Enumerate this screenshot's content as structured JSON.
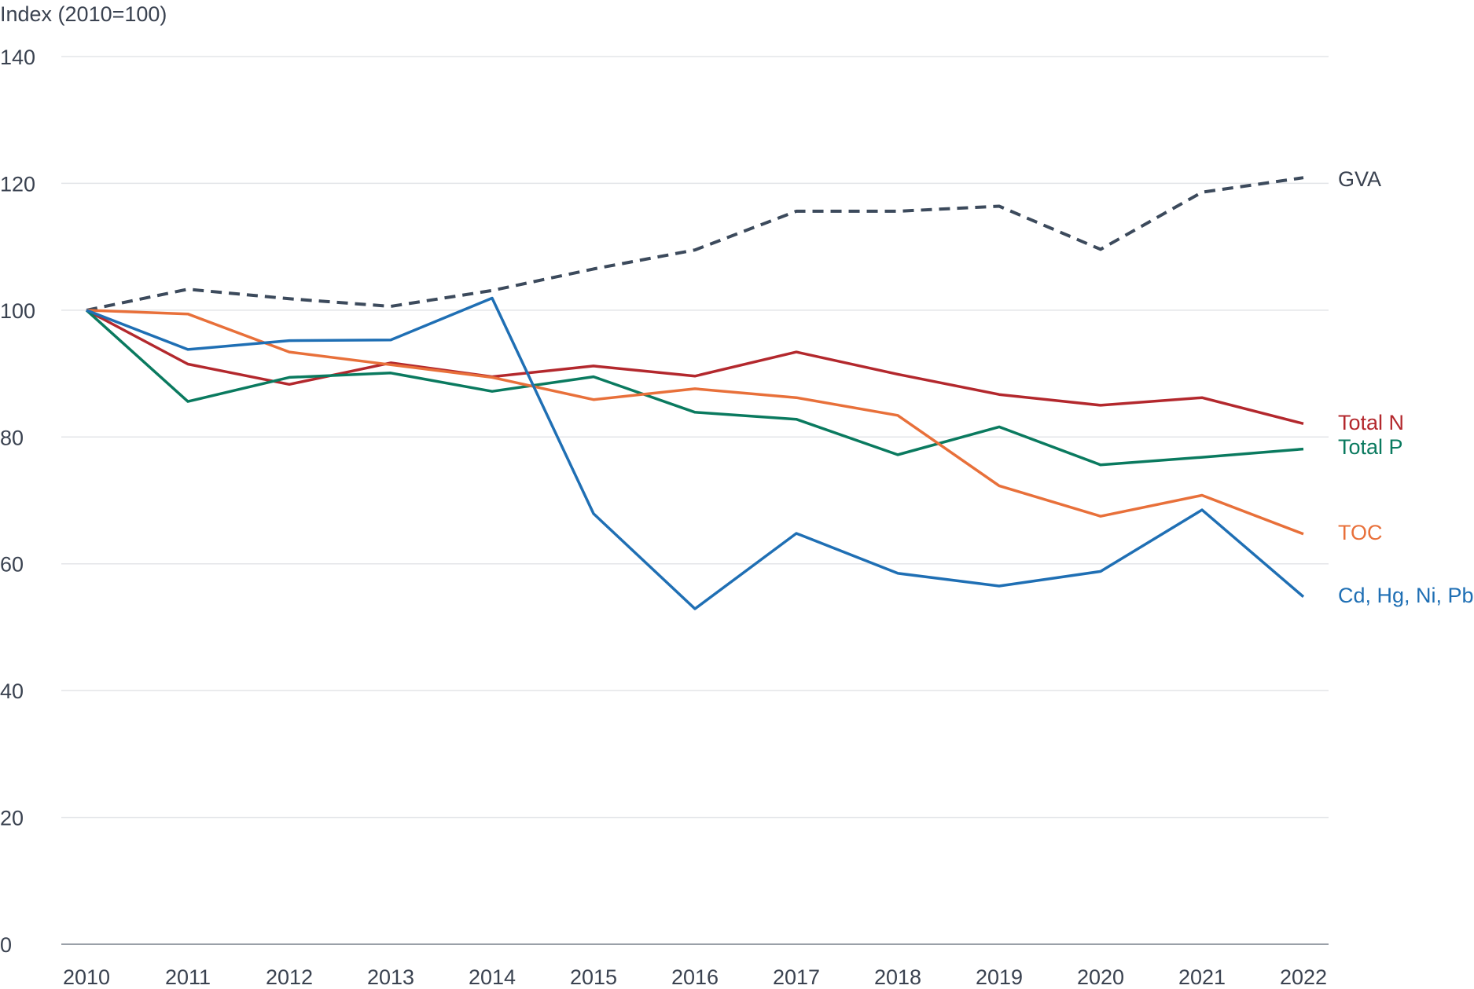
{
  "chart_data": {
    "type": "line",
    "ylabel": "Index (2010=100)",
    "x": [
      2010,
      2011,
      2012,
      2013,
      2014,
      2015,
      2016,
      2017,
      2018,
      2019,
      2020,
      2021,
      2022
    ],
    "xticks": [
      "2010",
      "2011",
      "2012",
      "2013",
      "2014",
      "2015",
      "2016",
      "2017",
      "2018",
      "2019",
      "2020",
      "2021",
      "2022"
    ],
    "ylim": [
      0,
      140
    ],
    "yticks": [
      "0",
      "20",
      "40",
      "60",
      "80",
      "100",
      "120",
      "140"
    ],
    "grid": true,
    "series": [
      {
        "name": "GVA",
        "color": "#3c4a5c",
        "dashed": true,
        "values": [
          100,
          103.3,
          101.8,
          100.6,
          103.1,
          106.5,
          109.5,
          115.6,
          115.6,
          116.4,
          109.6,
          118.6,
          120.9
        ]
      },
      {
        "name": "Total N",
        "color": "#b3282d",
        "dashed": false,
        "values": [
          100,
          91.5,
          88.3,
          91.7,
          89.5,
          91.2,
          89.6,
          93.4,
          89.9,
          86.7,
          85.0,
          86.2,
          82.1
        ]
      },
      {
        "name": "Total P",
        "color": "#0a7a5f",
        "dashed": false,
        "values": [
          100,
          85.6,
          89.4,
          90.1,
          87.2,
          89.5,
          83.9,
          82.8,
          77.2,
          81.6,
          75.6,
          76.8,
          78.1
        ]
      },
      {
        "name": "TOC",
        "color": "#e8703a",
        "dashed": false,
        "values": [
          100,
          99.4,
          93.4,
          91.4,
          89.4,
          85.9,
          87.6,
          86.2,
          83.4,
          72.3,
          67.5,
          70.8,
          64.7
        ]
      },
      {
        "name": "Cd, Hg, Ni, Pb",
        "color": "#1f6fb4",
        "dashed": false,
        "values": [
          100,
          93.8,
          95.2,
          95.3,
          101.9,
          67.9,
          52.9,
          64.8,
          58.5,
          56.5,
          58.8,
          68.5,
          54.8
        ]
      }
    ]
  }
}
